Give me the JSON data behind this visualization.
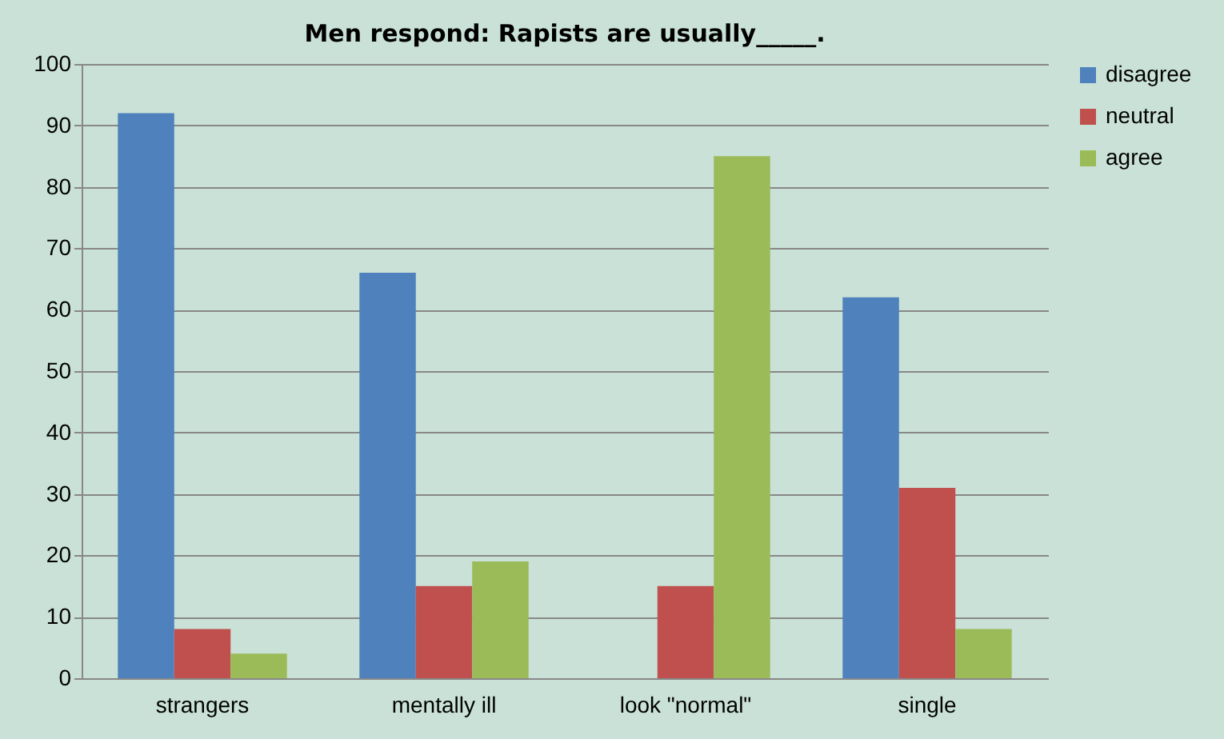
{
  "chart_data": {
    "type": "bar",
    "title": "Men respond:  Rapists are usually_____.",
    "categories": [
      "strangers",
      "mentally ill",
      "look \"normal\"",
      "single"
    ],
    "series": [
      {
        "name": "disagree",
        "color": "#4f81bd",
        "values": [
          92,
          66,
          0,
          62
        ]
      },
      {
        "name": "neutral",
        "color": "#c0504d",
        "values": [
          8,
          15,
          15,
          31
        ]
      },
      {
        "name": "agree",
        "color": "#9bbb59",
        "values": [
          4,
          19,
          85,
          8
        ]
      }
    ],
    "ylim": [
      0,
      100
    ],
    "yticks": [
      0,
      10,
      20,
      30,
      40,
      50,
      60,
      70,
      80,
      90,
      100
    ],
    "grid": "y",
    "legend": "right"
  }
}
